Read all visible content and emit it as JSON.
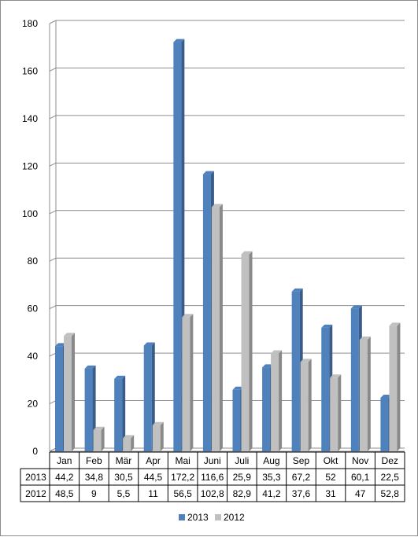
{
  "chart_data": {
    "type": "bar",
    "style": "3d-clustered-column",
    "categories": [
      "Jan",
      "Feb",
      "Mär",
      "Apr",
      "Mai",
      "Juni",
      "Juli",
      "Aug",
      "Sep",
      "Okt",
      "Nov",
      "Dez"
    ],
    "series": [
      {
        "name": "2013",
        "color": "#4f81bd",
        "values": [
          44.2,
          34.8,
          30.5,
          44.5,
          172.2,
          116.6,
          25.9,
          35.3,
          67.2,
          52,
          60.1,
          22.5
        ],
        "labels": [
          "44,2",
          "34,8",
          "30,5",
          "44,5",
          "172,2",
          "116,6",
          "25,9",
          "35,3",
          "67,2",
          "52",
          "60,1",
          "22,5"
        ]
      },
      {
        "name": "2012",
        "color": "#c0c0c0",
        "values": [
          48.5,
          9,
          5.5,
          11,
          56.5,
          102.8,
          82.9,
          41.2,
          37.6,
          31,
          47,
          52.8
        ],
        "labels": [
          "48,5",
          "9",
          "5,5",
          "11",
          "56,5",
          "102,8",
          "82,9",
          "41,2",
          "37,6",
          "31",
          "47",
          "52,8"
        ]
      }
    ],
    "yticks": [
      "0",
      "20",
      "40",
      "60",
      "80",
      "100",
      "120",
      "140",
      "160",
      "180"
    ],
    "ylim": [
      0,
      180
    ],
    "title": "",
    "xlabel": "",
    "ylabel": "",
    "grid": true,
    "legend": "bottom",
    "data_table": true
  }
}
